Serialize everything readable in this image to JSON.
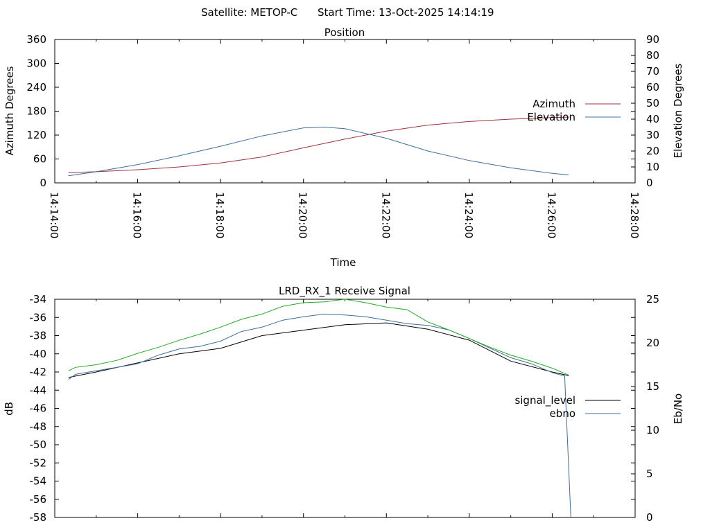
{
  "header": {
    "satellite_label": "Satellite: METOP-C",
    "start_label": "Start Time: 13-Oct-2025 14:14:19"
  },
  "chart_data": [
    {
      "type": "line",
      "title": "Position",
      "xlabel": "Time",
      "ylabel": "Azimuth Degrees",
      "y2label": "Elevation Degrees",
      "xticks": [
        "14:14:00",
        "14:16:00",
        "14:18:00",
        "14:20:00",
        "14:22:00",
        "14:24:00",
        "14:26:00",
        "14:28:00"
      ],
      "xlim_minutes": [
        0,
        14
      ],
      "ylim": [
        0,
        360
      ],
      "y2lim": [
        0,
        90
      ],
      "yticks": [
        0,
        60,
        120,
        180,
        240,
        300,
        360
      ],
      "y2ticks": [
        0,
        10,
        20,
        30,
        40,
        50,
        60,
        70,
        80,
        90
      ],
      "grid": false,
      "legend": "right",
      "series": [
        {
          "name": "Azimuth",
          "axis": "left",
          "color": "#a0303c",
          "x_minutes": [
            0.33,
            1,
            2,
            3,
            4,
            5,
            6,
            7,
            8,
            9,
            10,
            11,
            12,
            12.4
          ],
          "values": [
            26,
            28,
            33,
            40,
            50,
            65,
            88,
            110,
            130,
            145,
            154,
            160,
            164,
            165
          ]
        },
        {
          "name": "Elevation",
          "axis": "right",
          "color": "#3c6e9e",
          "x_minutes": [
            0.33,
            1,
            2,
            3,
            4,
            5,
            6,
            6.5,
            7,
            8,
            9,
            10,
            11,
            12,
            12.4
          ],
          "values": [
            4.5,
            7,
            11.5,
            17,
            23,
            29.5,
            34.5,
            35,
            34,
            28,
            20,
            14,
            9.5,
            6,
            5
          ]
        }
      ]
    },
    {
      "type": "line",
      "title": "LRD_RX_1 Receive Signal",
      "ylabel": "dB",
      "y2label": "Eb/No",
      "xlim_minutes": [
        0,
        14
      ],
      "ylim": [
        -58,
        -34
      ],
      "y2lim": [
        0,
        25
      ],
      "yticks": [
        -34,
        -36,
        -38,
        -40,
        -42,
        -44,
        -46,
        -48,
        -50,
        -52,
        -54,
        -56,
        -58
      ],
      "y2ticks": [
        0,
        5,
        10,
        15,
        20,
        25
      ],
      "grid": false,
      "legend": "right",
      "series": [
        {
          "name": "signal_level",
          "axis": "left",
          "color": "#000000",
          "x_minutes": [
            0.33,
            1,
            2,
            3,
            4,
            5,
            6,
            7,
            8,
            9,
            10,
            11,
            12,
            12.4
          ],
          "values": [
            -42.6,
            -42.0,
            -41.0,
            -40.0,
            -39.4,
            -38.0,
            -37.4,
            -36.8,
            -36.6,
            -37.3,
            -38.5,
            -40.8,
            -42.0,
            -42.4
          ]
        },
        {
          "name": "ebno",
          "axis": "right",
          "color": "#3c6e9e",
          "x_minutes": [
            0.33,
            0.5,
            1,
            1.5,
            2,
            2.5,
            3,
            3.5,
            4,
            4.5,
            5,
            5.5,
            6,
            6.5,
            7,
            7.5,
            8,
            8.5,
            9,
            9.5,
            10,
            10.5,
            11,
            11.5,
            12,
            12.3,
            12.45
          ],
          "values": [
            15.8,
            16.4,
            16.8,
            17.2,
            17.6,
            18.6,
            19.3,
            19.6,
            20.2,
            21.3,
            21.8,
            22.6,
            23.0,
            23.3,
            23.2,
            23.0,
            22.6,
            22.2,
            22.0,
            21.5,
            20.5,
            19.4,
            18.3,
            17.6,
            16.6,
            16.2,
            0
          ]
        },
        {
          "name": "",
          "axis": "right",
          "color": "#22aa22",
          "x_minutes": [
            0.33,
            0.5,
            1,
            1.5,
            2,
            2.5,
            3,
            3.5,
            4,
            4.5,
            5,
            5.5,
            6,
            6.5,
            7,
            7.5,
            8,
            8.5,
            9,
            9.5,
            10,
            10.5,
            11,
            11.5,
            12,
            12.4
          ],
          "values": [
            16.8,
            17.2,
            17.5,
            18.0,
            18.8,
            19.5,
            20.3,
            21.0,
            21.8,
            22.7,
            23.3,
            24.2,
            24.6,
            24.7,
            25.0,
            24.6,
            24.1,
            23.8,
            22.4,
            21.5,
            20.5,
            19.5,
            18.6,
            17.9,
            17.1,
            16.3
          ]
        }
      ]
    }
  ]
}
